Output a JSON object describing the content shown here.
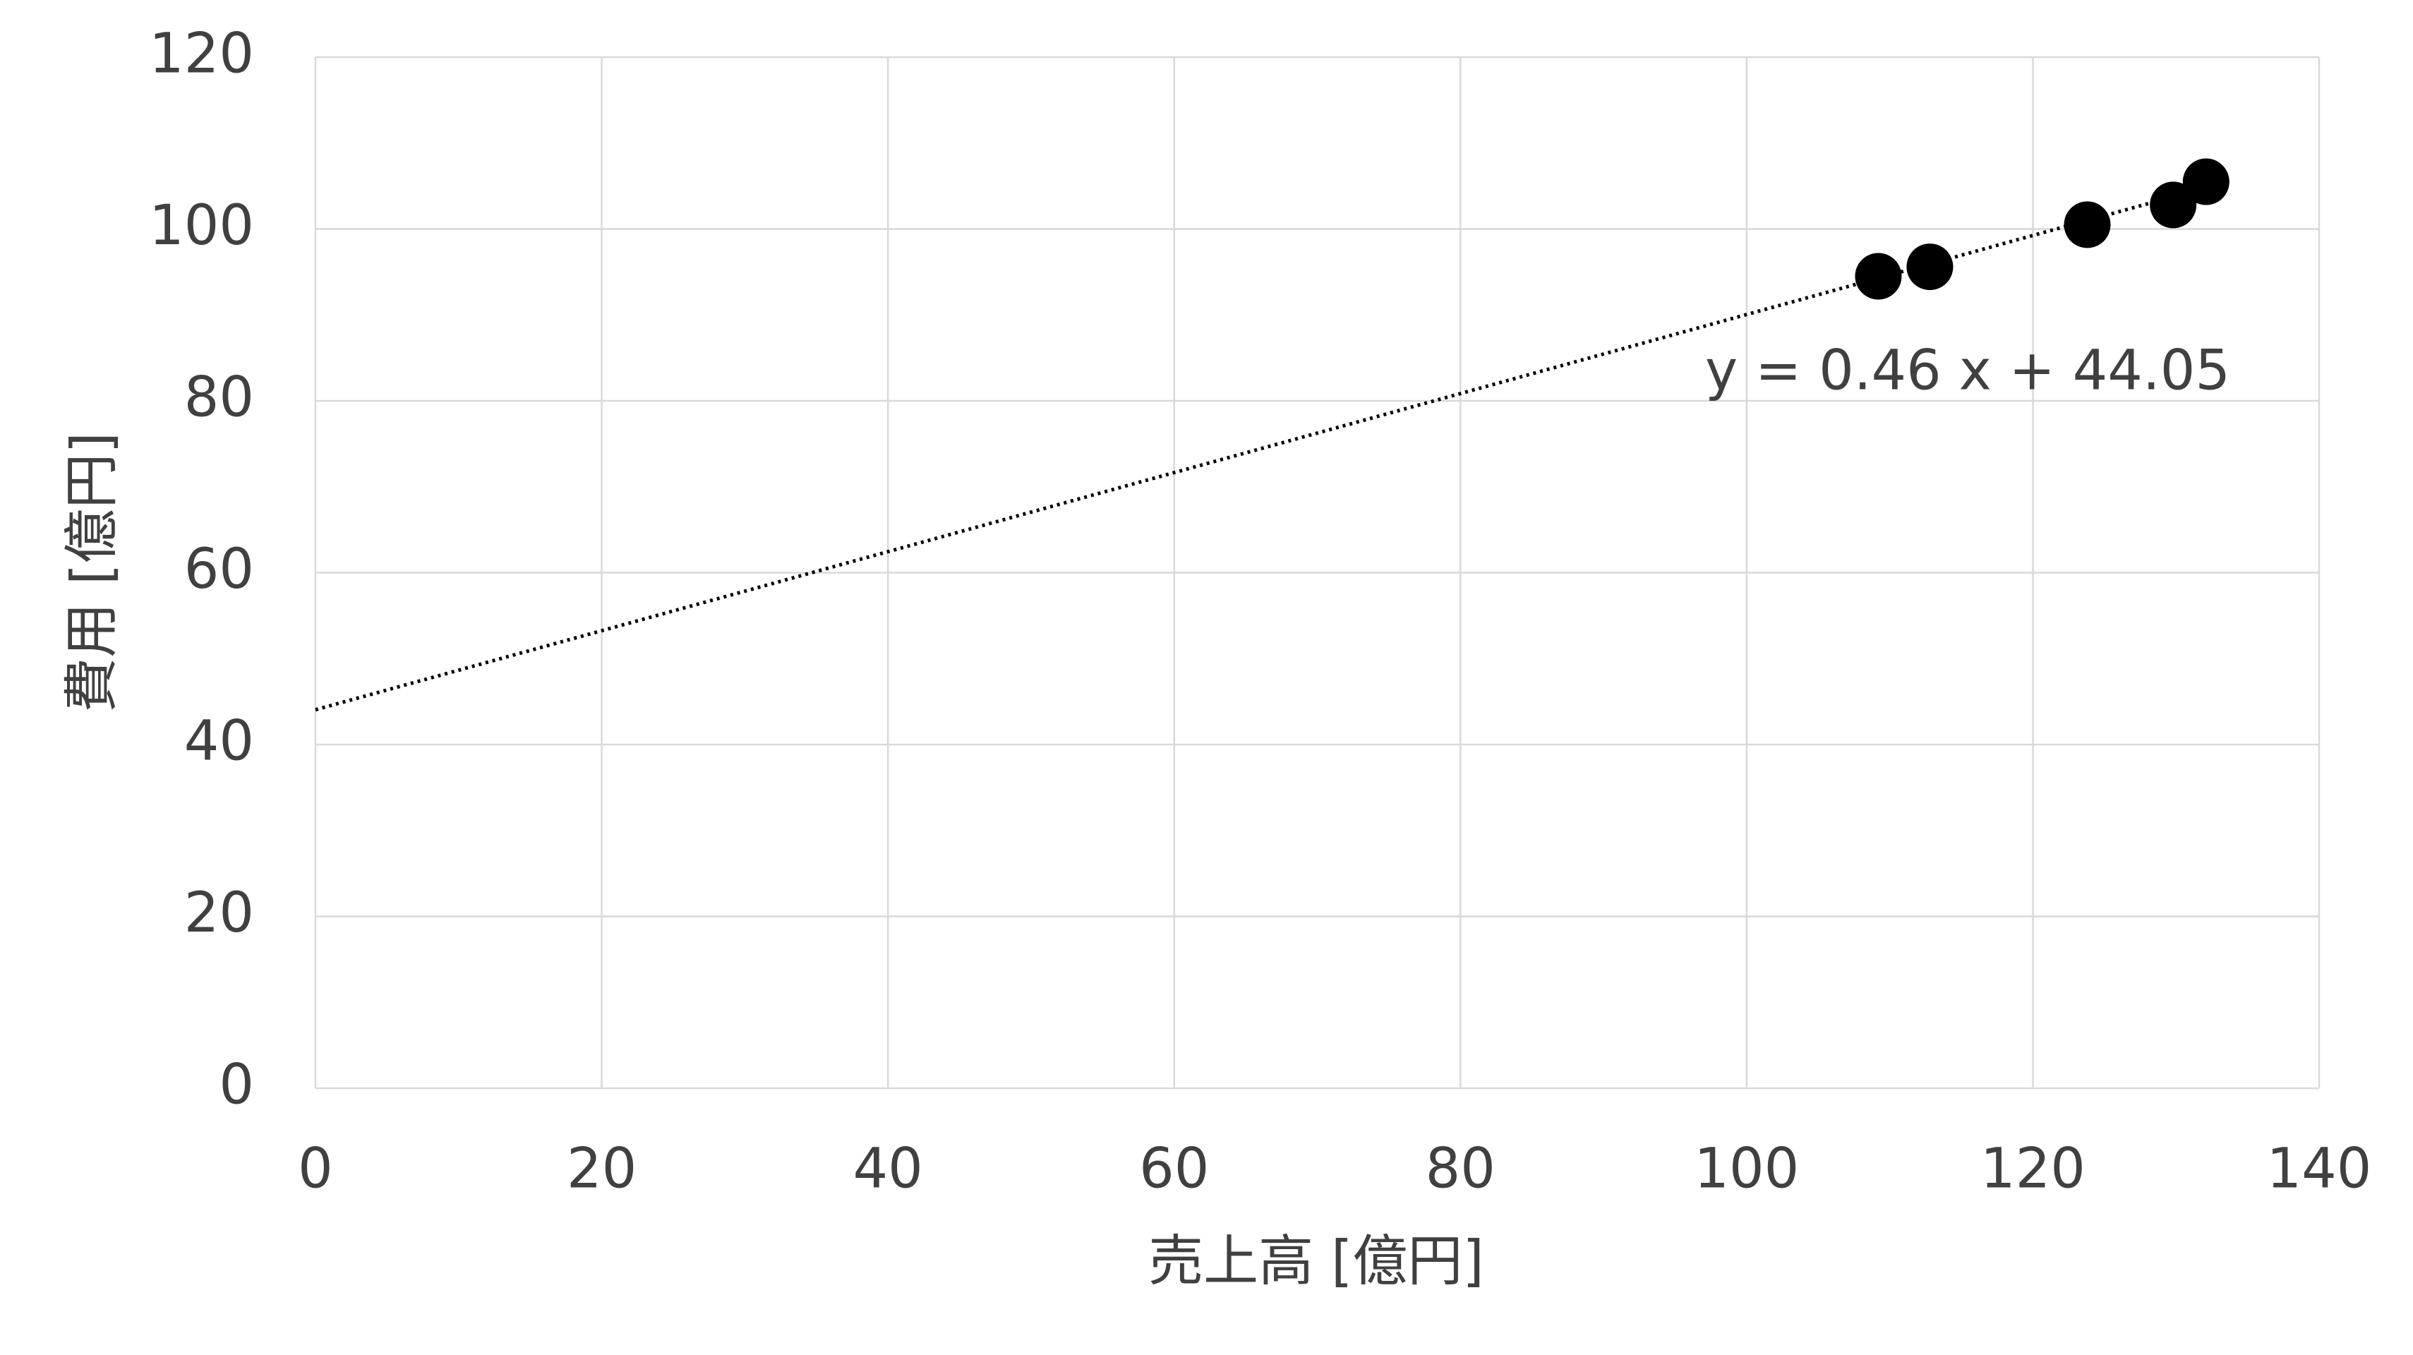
{
  "chart_data": {
    "type": "scatter",
    "x_label": "売上高 [億円]",
    "y_label": "費用 [億円]",
    "x": [
      109.2,
      112.8,
      123.8,
      129.8,
      132.1
    ],
    "series": [
      {
        "name": "費用",
        "color": "#000000",
        "values": [
          94.5,
          95.6,
          100.5,
          102.8,
          105.5
        ]
      }
    ],
    "trendline": {
      "slope": 0.46,
      "intercept": 44.05,
      "label": "y = 0.46 x + 44.05",
      "color": "#000000"
    },
    "xlim": [
      0,
      140
    ],
    "xticks": [
      0,
      20,
      40,
      60,
      80,
      100,
      120,
      140
    ],
    "ylim": [
      0,
      120
    ],
    "yticks": [
      0,
      20,
      40,
      60,
      80,
      100,
      120
    ],
    "grid": true
  }
}
